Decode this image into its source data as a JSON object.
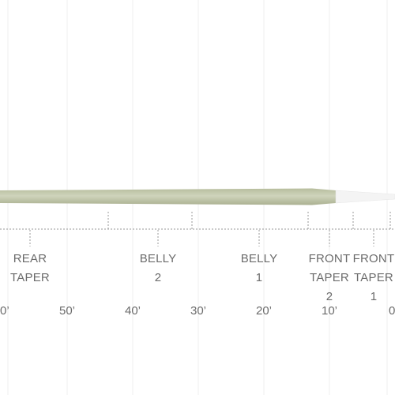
{
  "diagram": {
    "colors": {
      "line_body": "#c9ceb5",
      "line_edge": "#a9b08f",
      "tip": "#f3f3f3",
      "grid": "#ececec",
      "dotted": "#9a9a9a",
      "text": "#6b6b6b"
    },
    "segments": [
      {
        "id": "rear-taper",
        "line1": "REAR",
        "line2": "TAPER"
      },
      {
        "id": "belly-2",
        "line1": "BELLY",
        "line2": "2"
      },
      {
        "id": "belly-1",
        "line1": "BELLY",
        "line2": "1"
      },
      {
        "id": "front-taper-2",
        "line1": "FRONT",
        "line2": "TAPER",
        "line3": "2"
      },
      {
        "id": "front-taper-1",
        "line1": "FRONT",
        "line2": "TAPER",
        "line3": "1"
      }
    ],
    "distance_labels": [
      "0’",
      "50’",
      "40’",
      "30’",
      "20’",
      "10’",
      "0"
    ]
  }
}
